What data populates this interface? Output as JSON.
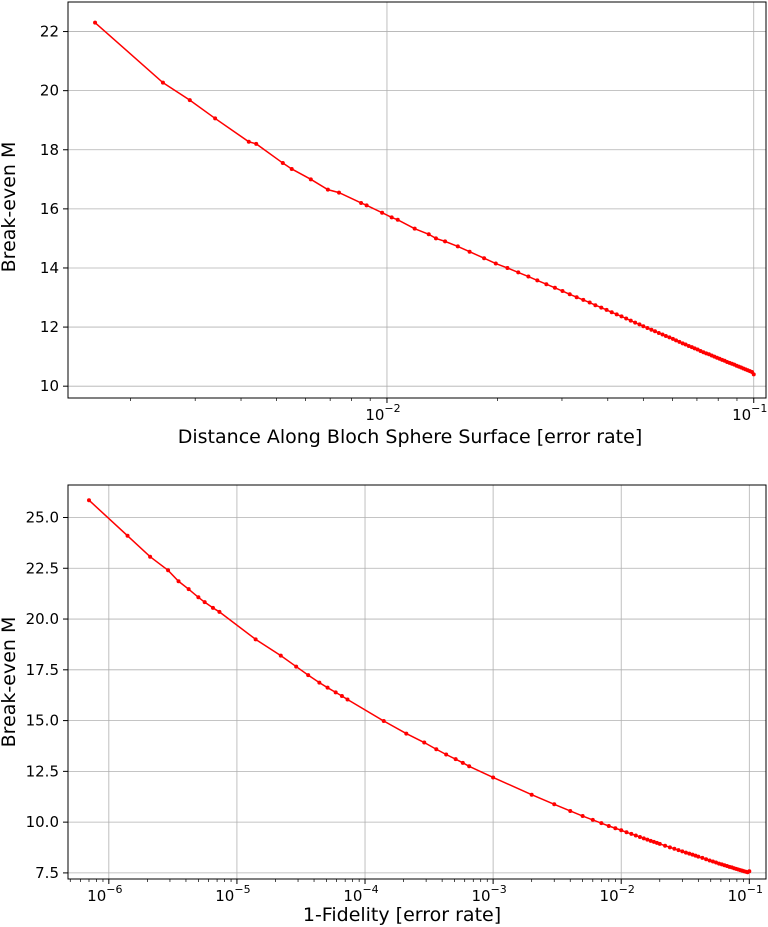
{
  "chart_data": [
    {
      "type": "line",
      "xscale": "log",
      "xlabel": "Distance Along Bloch Sphere Surface [error rate]",
      "ylabel": "Break-even M",
      "xlim": [
        0.00135,
        0.108
      ],
      "ylim": [
        9.6,
        23.0
      ],
      "y_ticks": [
        "10",
        "12",
        "14",
        "16",
        "18",
        "20",
        "22"
      ],
      "x_ticks": [
        {
          "base": "10",
          "exp": "−2",
          "value": 0.01
        },
        {
          "base": "10",
          "exp": "−1",
          "value": 0.1
        }
      ],
      "grid": true,
      "color": "#ff0000",
      "series": [
        {
          "x": [
            0.0016,
            0.00245,
            0.0029,
            0.0034,
            0.0042,
            0.0044,
            0.0052,
            0.0055,
            0.0062,
            0.0069,
            0.0074,
            0.0085,
            0.0088,
            0.0097,
            0.0103,
            0.0107,
            0.0119,
            0.013,
            0.0136,
            0.0144,
            0.0156,
            0.0168,
            0.0184,
            0.0198,
            0.0213,
            0.0228,
            0.0243,
            0.0257,
            0.0272,
            0.0287,
            0.0301,
            0.0315,
            0.0329,
            0.0343,
            0.0357,
            0.037,
            0.0384,
            0.0397,
            0.041,
            0.0423,
            0.0436,
            0.0449,
            0.0462,
            0.0475,
            0.0488,
            0.05,
            0.0513,
            0.0526,
            0.0538,
            0.0551,
            0.0564,
            0.0576,
            0.0589,
            0.0602,
            0.0614,
            0.0627,
            0.064,
            0.0652,
            0.0665,
            0.0678,
            0.069,
            0.0703,
            0.0716,
            0.0729,
            0.0742,
            0.0755,
            0.0768,
            0.0781,
            0.0794,
            0.0807,
            0.082,
            0.0833,
            0.0846,
            0.0859,
            0.0872,
            0.0885,
            0.0898,
            0.0911,
            0.0924,
            0.0937,
            0.095,
            0.0963,
            0.0976,
            0.0989,
            0.1
          ],
          "y": [
            22.3,
            20.27,
            19.68,
            19.06,
            18.27,
            18.2,
            17.55,
            17.35,
            17.0,
            16.65,
            16.55,
            16.2,
            16.12,
            15.87,
            15.71,
            15.63,
            15.33,
            15.14,
            15.0,
            14.9,
            14.73,
            14.55,
            14.33,
            14.15,
            14.0,
            13.85,
            13.71,
            13.58,
            13.45,
            13.33,
            13.22,
            13.11,
            13.01,
            12.92,
            12.83,
            12.74,
            12.66,
            12.58,
            12.5,
            12.43,
            12.36,
            12.29,
            12.22,
            12.15,
            12.09,
            12.03,
            11.97,
            11.91,
            11.86,
            11.8,
            11.75,
            11.7,
            11.65,
            11.6,
            11.55,
            11.5,
            11.45,
            11.41,
            11.36,
            11.32,
            11.28,
            11.24,
            11.19,
            11.15,
            11.11,
            11.08,
            11.04,
            11.0,
            10.96,
            10.93,
            10.89,
            10.86,
            10.82,
            10.79,
            10.76,
            10.73,
            10.69,
            10.66,
            10.63,
            10.6,
            10.57,
            10.54,
            10.51,
            10.48,
            10.4
          ]
        }
      ]
    },
    {
      "type": "line",
      "xscale": "log",
      "xlabel": "1-Fidelity [error rate]",
      "ylabel": "Break-even M",
      "xlim": [
        4.8e-07,
        0.135
      ],
      "ylim": [
        7.2,
        26.6
      ],
      "y_ticks": [
        "7.5",
        "10.0",
        "12.5",
        "15.0",
        "17.5",
        "20.0",
        "22.5",
        "25.0"
      ],
      "x_ticks": [
        {
          "base": "10",
          "exp": "−6",
          "value": 1e-06
        },
        {
          "base": "10",
          "exp": "−5",
          "value": 1e-05
        },
        {
          "base": "10",
          "exp": "−4",
          "value": 0.0001
        },
        {
          "base": "10",
          "exp": "−3",
          "value": 0.001
        },
        {
          "base": "10",
          "exp": "−2",
          "value": 0.01
        },
        {
          "base": "10",
          "exp": "−1",
          "value": 0.1
        }
      ],
      "grid": true,
      "color": "#ff0000",
      "series": [
        {
          "x": [
            7e-07,
            1.4e-06,
            2.1e-06,
            2.9e-06,
            3.5e-06,
            4.2e-06,
            5e-06,
            5.6e-06,
            6.5e-06,
            7.3e-06,
            1.4e-05,
            2.2e-05,
            2.9e-05,
            3.6e-05,
            4.4e-05,
            5.1e-05,
            5.9e-05,
            6.6e-05,
            7.3e-05,
            0.00014,
            0.00021,
            0.00029,
            0.00036,
            0.00043,
            0.00051,
            0.00058,
            0.00065,
            0.001,
            0.002,
            0.003,
            0.004,
            0.005,
            0.006,
            0.007,
            0.008,
            0.009,
            0.01,
            0.011,
            0.012,
            0.013,
            0.014,
            0.015,
            0.016,
            0.017,
            0.018,
            0.019,
            0.02,
            0.022,
            0.024,
            0.026,
            0.028,
            0.03,
            0.032,
            0.034,
            0.036,
            0.038,
            0.04,
            0.043,
            0.046,
            0.049,
            0.052,
            0.055,
            0.058,
            0.061,
            0.064,
            0.067,
            0.07,
            0.073,
            0.076,
            0.079,
            0.082,
            0.085,
            0.088,
            0.091,
            0.094,
            0.097,
            0.1
          ],
          "y": [
            25.85,
            24.1,
            23.07,
            22.4,
            21.86,
            21.47,
            21.07,
            20.83,
            20.55,
            20.35,
            19.0,
            18.2,
            17.66,
            17.24,
            16.87,
            16.62,
            16.39,
            16.21,
            16.04,
            14.98,
            14.36,
            13.92,
            13.59,
            13.33,
            13.1,
            12.92,
            12.75,
            12.2,
            11.35,
            10.88,
            10.55,
            10.3,
            10.11,
            9.95,
            9.81,
            9.7,
            9.6,
            9.5,
            9.42,
            9.34,
            9.27,
            9.2,
            9.14,
            9.08,
            9.03,
            8.98,
            8.93,
            8.84,
            8.76,
            8.69,
            8.62,
            8.56,
            8.5,
            8.45,
            8.4,
            8.35,
            8.3,
            8.24,
            8.17,
            8.11,
            8.06,
            8.01,
            7.96,
            7.92,
            7.88,
            7.84,
            7.8,
            7.77,
            7.73,
            7.7,
            7.67,
            7.64,
            7.61,
            7.58,
            7.56,
            7.53,
            7.58
          ]
        }
      ]
    }
  ]
}
